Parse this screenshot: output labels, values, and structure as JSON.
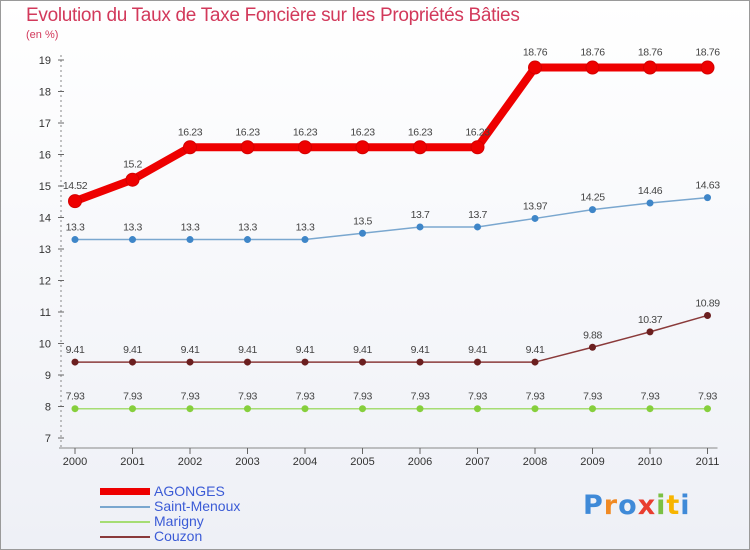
{
  "title": "Evolution du Taux de Taxe Foncière sur les Propriétés Bâties",
  "unit_label": "(en %)",
  "logo": {
    "letters": [
      "P",
      "r",
      "o",
      "x",
      "i",
      "t",
      "i"
    ],
    "colors": [
      "#3f8ad8",
      "#f08a24",
      "#3f8ad8",
      "#e93d2f",
      "#7bc043",
      "#f7b500",
      "#3f8ad8"
    ]
  },
  "chart_data": {
    "type": "line",
    "title": "Evolution du Taux de Taxe Foncière sur les Propriétés Bâties",
    "ylabel": "(en %)",
    "ylim": [
      7,
      19
    ],
    "yticks": [
      7,
      8,
      9,
      10,
      11,
      12,
      13,
      14,
      15,
      16,
      17,
      18,
      19
    ],
    "categories": [
      "2000",
      "2001",
      "2002",
      "2003",
      "2004",
      "2005",
      "2006",
      "2007",
      "2008",
      "2009",
      "2010",
      "2011"
    ],
    "series": [
      {
        "name": "AGONGES",
        "color": "#ee0000",
        "point_color": "#ee0000",
        "values": [
          14.52,
          15.2,
          16.23,
          16.23,
          16.23,
          16.23,
          16.23,
          16.23,
          18.76,
          18.76,
          18.76,
          18.76
        ],
        "labels": [
          "14.52",
          "15.2",
          "16.23",
          "16.23",
          "16.23",
          "16.23",
          "16.23",
          "16.23",
          "18.76",
          "18.76",
          "18.76",
          "18.76"
        ]
      },
      {
        "name": "Saint-Menoux",
        "color": "#7aa7cf",
        "point_color": "#3f86c8",
        "values": [
          13.3,
          13.3,
          13.3,
          13.3,
          13.3,
          13.5,
          13.7,
          13.7,
          13.97,
          14.25,
          14.46,
          14.63
        ],
        "labels": [
          "13.3",
          "13.3",
          "13.3",
          "13.3",
          "13.3",
          "13.5",
          "13.7",
          "13.7",
          "13.97",
          "14.25",
          "14.46",
          "14.63"
        ]
      },
      {
        "name": "Marigny",
        "color": "#a6dd73",
        "point_color": "#86cf3c",
        "values": [
          7.93,
          7.93,
          7.93,
          7.93,
          7.93,
          7.93,
          7.93,
          7.93,
          7.93,
          7.93,
          7.93,
          7.93
        ],
        "labels": [
          "7.93",
          "7.93",
          "7.93",
          "7.93",
          "7.93",
          "7.93",
          "7.93",
          "7.93",
          "7.93",
          "7.93",
          "7.93",
          "7.93"
        ]
      },
      {
        "name": "Couzon",
        "color": "#8a3a3a",
        "point_color": "#6b1f1f",
        "values": [
          9.41,
          9.41,
          9.41,
          9.41,
          9.41,
          9.41,
          9.41,
          9.41,
          9.41,
          9.88,
          10.37,
          10.89
        ],
        "labels": [
          "9.41",
          "9.41",
          "9.41",
          "9.41",
          "9.41",
          "9.41",
          "9.41",
          "9.41",
          "9.41",
          "9.88",
          "10.37",
          "10.89"
        ]
      }
    ]
  }
}
